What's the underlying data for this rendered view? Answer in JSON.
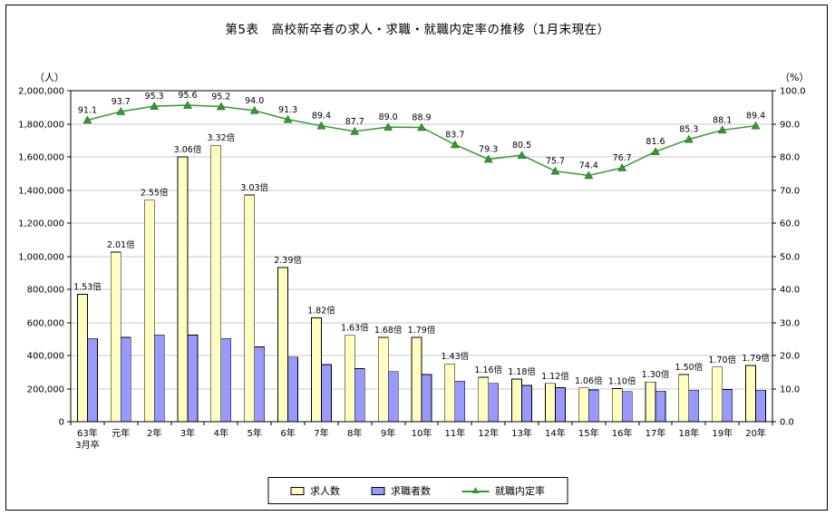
{
  "page": {
    "title": "第5表　高校新卒者の求人・求職・就職内定率の推移（1月末現在）",
    "left_axis_unit": "（人）",
    "right_axis_unit": "（%）"
  },
  "legend": {
    "items": [
      {
        "label": "求人数",
        "type": "bar",
        "color": "#ffffc0"
      },
      {
        "label": "求職者数",
        "type": "bar",
        "color": "#9999ff"
      },
      {
        "label": "就職内定率",
        "type": "line",
        "color": "#339933",
        "marker": "triangle"
      }
    ]
  },
  "chart_data": {
    "type": "bar",
    "subtype": "grouped bars with overlaid line (dual axis)",
    "title": "第5表　高校新卒者の求人・求職・就職内定率の推移（1月末現在）",
    "categories": [
      "63年\n3月卒",
      "元年",
      "2年",
      "3年",
      "4年",
      "5年",
      "6年",
      "7年",
      "8年",
      "9年",
      "10年",
      "11年",
      "12年",
      "13年",
      "14年",
      "15年",
      "16年",
      "17年",
      "18年",
      "19年",
      "20年"
    ],
    "series": [
      {
        "name": "求人数",
        "type": "bar",
        "axis": "left",
        "color": "#ffffc0",
        "values": [
          770000,
          1025000,
          1339000,
          1600000,
          1670000,
          1370000,
          932000,
          628000,
          522000,
          509000,
          510000,
          350000,
          269000,
          258000,
          231000,
          204000,
          200000,
          240000,
          285000,
          330000,
          340000
        ],
        "point_labels": [
          "1.53倍",
          "2.01倍",
          "2.55倍",
          "3.06倍",
          "3.32倍",
          "3.03倍",
          "2.39倍",
          "1.82倍",
          "1.63倍",
          "1.68倍",
          "1.79倍",
          "1.43倍",
          "1.16倍",
          "1.18倍",
          "1.12倍",
          "1.06倍",
          "1.10倍",
          "1.30倍",
          "1.50倍",
          "1.70倍",
          "1.79倍"
        ]
      },
      {
        "name": "求職者数",
        "type": "bar",
        "axis": "left",
        "color": "#9999ff",
        "values": [
          503000,
          510000,
          525000,
          523000,
          503000,
          452000,
          390000,
          345000,
          320000,
          303000,
          285000,
          245000,
          232000,
          219000,
          206000,
          192000,
          182000,
          185000,
          190000,
          194000,
          190000
        ]
      },
      {
        "name": "就職内定率",
        "type": "line",
        "axis": "right",
        "color": "#339933",
        "marker": "triangle",
        "values": [
          91.1,
          93.7,
          95.3,
          95.6,
          95.2,
          94.0,
          91.3,
          89.4,
          87.7,
          89.0,
          88.9,
          83.7,
          79.3,
          80.5,
          75.7,
          74.4,
          76.7,
          81.6,
          85.3,
          88.1,
          89.4
        ]
      }
    ],
    "left_axis": {
      "unit": "（人）",
      "min": 0,
      "max": 2000000,
      "step": 200000
    },
    "right_axis": {
      "unit": "（%）",
      "min": 0,
      "max": 100,
      "step": 10
    },
    "grid": true,
    "legend_position": "bottom"
  }
}
